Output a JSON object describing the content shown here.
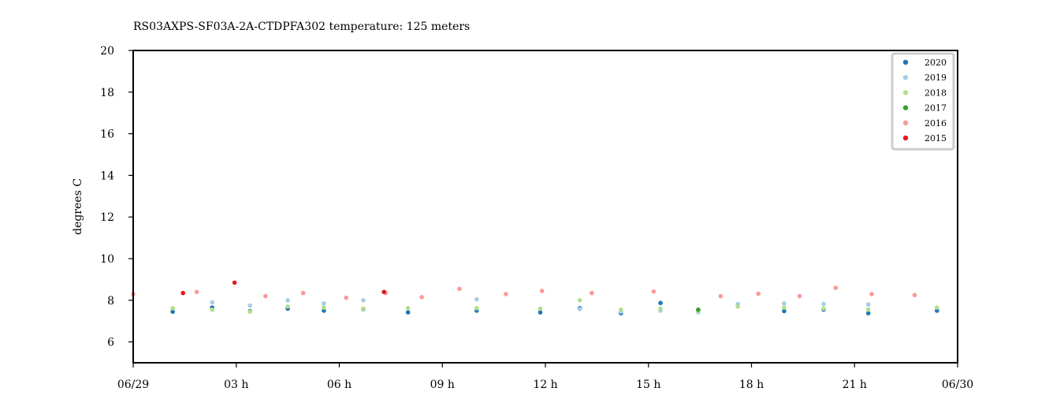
{
  "chart_data": {
    "type": "scatter",
    "title": "RS03AXPS-SF03A-2A-CTDPFA302 temperature: 125 meters",
    "xlabel": "",
    "ylabel": "degrees C",
    "xlim": [
      0,
      24
    ],
    "ylim": [
      5,
      20
    ],
    "x_unit": "hours since 06/29 00:00",
    "x_ticks": [
      {
        "value": 0,
        "label": "06/29"
      },
      {
        "value": 3,
        "label": "03 h"
      },
      {
        "value": 6,
        "label": "06 h"
      },
      {
        "value": 9,
        "label": "09 h"
      },
      {
        "value": 12,
        "label": "12 h"
      },
      {
        "value": 15,
        "label": "15 h"
      },
      {
        "value": 18,
        "label": "18 h"
      },
      {
        "value": 21,
        "label": "21 h"
      },
      {
        "value": 24,
        "label": "06/30"
      }
    ],
    "y_ticks": [
      6,
      8,
      10,
      12,
      14,
      16,
      18,
      20
    ],
    "grid": false,
    "legend_position": "top-right",
    "series": [
      {
        "name": "2020",
        "color": "#1f77b4",
        "points": [
          [
            1.15,
            7.45
          ],
          [
            2.3,
            7.65
          ],
          [
            3.4,
            7.48
          ],
          [
            4.5,
            7.6
          ],
          [
            5.55,
            7.5
          ],
          [
            6.7,
            7.58
          ],
          [
            8.0,
            7.42
          ],
          [
            10.0,
            7.5
          ],
          [
            11.85,
            7.42
          ],
          [
            13.0,
            7.62
          ],
          [
            14.2,
            7.38
          ],
          [
            15.35,
            7.87
          ],
          [
            16.45,
            7.52
          ],
          [
            18.95,
            7.48
          ],
          [
            20.1,
            7.55
          ],
          [
            21.4,
            7.38
          ],
          [
            23.4,
            7.5
          ]
        ]
      },
      {
        "name": "2019",
        "color": "#a6cee3",
        "points": [
          [
            2.3,
            7.9
          ],
          [
            3.4,
            7.75
          ],
          [
            4.5,
            8.0
          ],
          [
            5.55,
            7.85
          ],
          [
            6.7,
            8.0
          ],
          [
            10.0,
            8.05
          ],
          [
            13.0,
            7.58
          ],
          [
            14.2,
            7.45
          ],
          [
            15.35,
            7.5
          ],
          [
            16.45,
            7.42
          ],
          [
            17.6,
            7.82
          ],
          [
            18.95,
            7.85
          ],
          [
            20.1,
            7.82
          ],
          [
            21.4,
            7.8
          ]
        ]
      },
      {
        "name": "2018",
        "color": "#b2df8a",
        "points": [
          [
            1.15,
            7.62
          ],
          [
            2.3,
            7.55
          ],
          [
            3.4,
            7.45
          ],
          [
            4.5,
            7.7
          ],
          [
            5.55,
            7.65
          ],
          [
            6.7,
            7.6
          ],
          [
            8.0,
            7.62
          ],
          [
            10.0,
            7.62
          ],
          [
            11.85,
            7.6
          ],
          [
            13.0,
            8.0
          ],
          [
            14.2,
            7.55
          ],
          [
            15.35,
            7.6
          ],
          [
            16.45,
            7.5
          ],
          [
            17.6,
            7.7
          ],
          [
            18.95,
            7.65
          ],
          [
            20.1,
            7.6
          ],
          [
            21.4,
            7.55
          ],
          [
            23.4,
            7.65
          ]
        ]
      },
      {
        "name": "2017",
        "color": "#33a02c",
        "points": [
          [
            16.45,
            7.55
          ]
        ]
      },
      {
        "name": "2016",
        "color": "#fb9a99",
        "points": [
          [
            0.0,
            8.3
          ],
          [
            1.85,
            8.4
          ],
          [
            3.85,
            8.2
          ],
          [
            4.95,
            8.35
          ],
          [
            6.2,
            8.12
          ],
          [
            7.35,
            8.35
          ],
          [
            8.4,
            8.15
          ],
          [
            9.5,
            8.55
          ],
          [
            10.85,
            8.3
          ],
          [
            11.9,
            8.45
          ],
          [
            13.35,
            8.35
          ],
          [
            15.15,
            8.42
          ],
          [
            17.1,
            8.2
          ],
          [
            18.2,
            8.32
          ],
          [
            19.4,
            8.2
          ],
          [
            20.45,
            8.6
          ],
          [
            21.5,
            8.3
          ],
          [
            22.75,
            8.25
          ]
        ]
      },
      {
        "name": "2015",
        "color": "#e31a1c",
        "points": [
          [
            1.45,
            8.35
          ],
          [
            2.95,
            8.85
          ],
          [
            7.3,
            8.4
          ]
        ]
      }
    ]
  }
}
